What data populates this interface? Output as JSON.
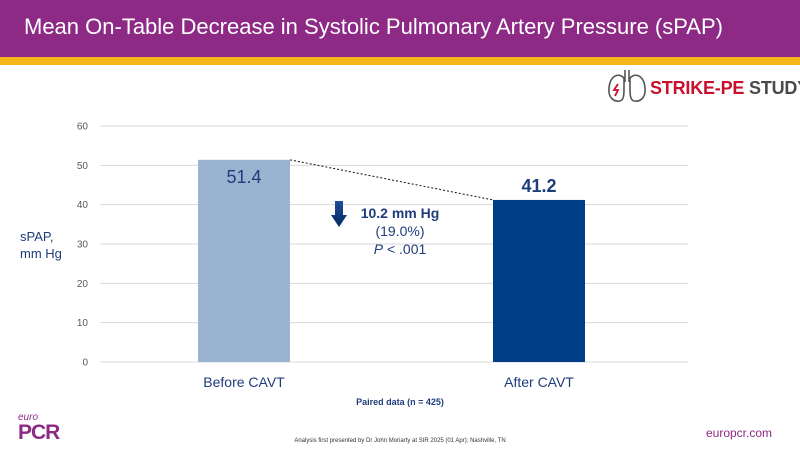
{
  "header": {
    "title": "Mean On-Table Decrease in Systolic Pulmonary Artery Pressure (sPAP)",
    "bg_color": "#8d2a86",
    "stripe_color": "#f2b619"
  },
  "study_logo": {
    "text_accent": "STRIKE-PE",
    "text_rest": " STUDY",
    "icon": "lungs-icon"
  },
  "chart_data": {
    "type": "bar",
    "categories": [
      "Before CAVT",
      "After CAVT"
    ],
    "values": [
      51.4,
      41.2
    ],
    "value_labels": [
      "51.4",
      "41.2"
    ],
    "colors": [
      "#9ab3d1",
      "#003f87"
    ],
    "ylabel_lines": [
      "sPAP,",
      "mm Hg"
    ],
    "ylim": [
      0,
      60
    ],
    "yticks": [
      0,
      10,
      20,
      30,
      40,
      50,
      60
    ],
    "grid": true,
    "annotation": {
      "decrease": "10.2 mm Hg",
      "percent": "(19.0%)",
      "p_label": "P",
      "p_value": " < .001"
    }
  },
  "paired_note": "Paired data (n = 425)",
  "footnote": "Analysis first presented by Dr John Moriarty at SIR 2025 (01 Apr); Nashville, TN",
  "brand": {
    "euro": "euro",
    "pcr": "PCR"
  },
  "website": "europcr.com"
}
